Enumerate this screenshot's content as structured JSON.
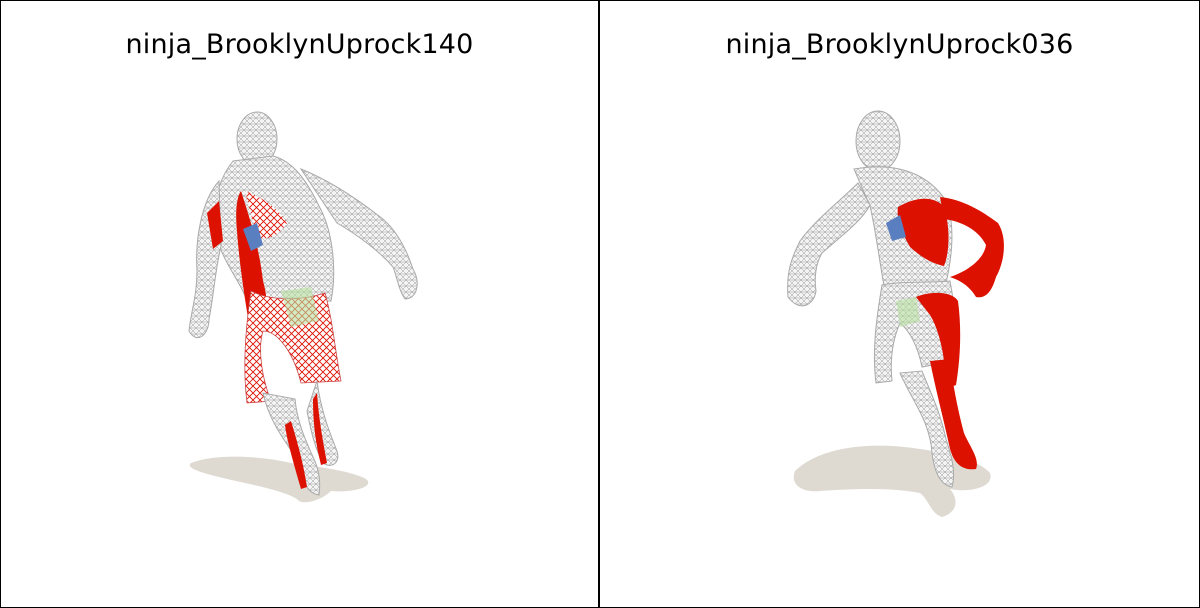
{
  "panels": [
    {
      "title": "ninja_BrooklynUprock140"
    },
    {
      "title": "ninja_BrooklynUprock036"
    }
  ],
  "colors": {
    "mesh": "#c9c9c9",
    "wire": "#8a8a8a",
    "highlight": "#dd1100",
    "shadow": "#dedad2",
    "accent_blue": "#5a7fc0",
    "accent_green": "#b8e0a0"
  }
}
